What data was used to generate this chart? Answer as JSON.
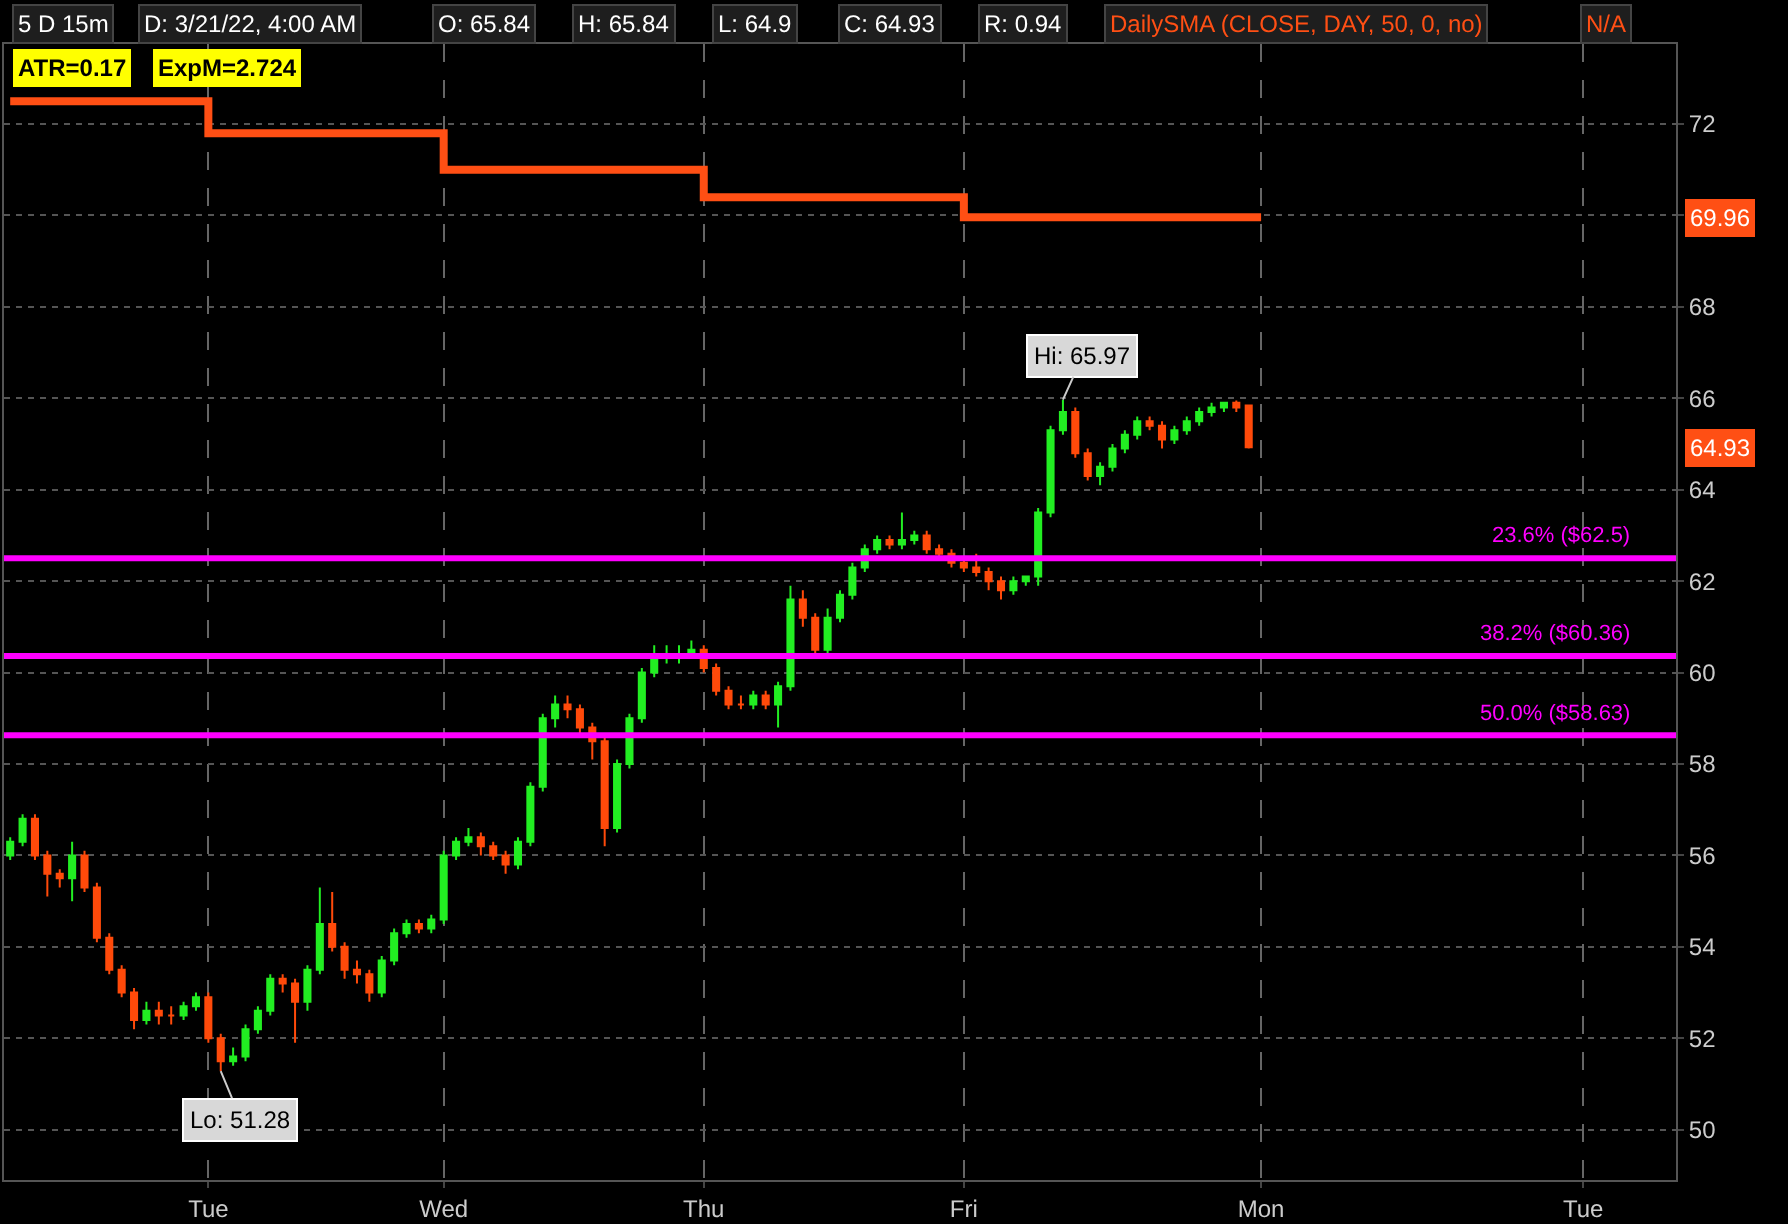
{
  "chart_data": {
    "type": "candlestick",
    "categories": [
      null,
      null,
      null,
      null,
      null,
      null,
      null,
      null,
      null,
      null,
      null,
      null,
      null,
      null,
      null,
      null,
      "Tue",
      null,
      null,
      null,
      null,
      null,
      null,
      null,
      null,
      null,
      null,
      null,
      null,
      null,
      null,
      null,
      null,
      null,
      null,
      "Wed",
      null,
      null,
      null,
      null,
      null,
      null,
      null,
      null,
      null,
      null,
      null,
      null,
      null,
      null,
      null,
      null,
      null,
      null,
      null,
      null,
      "Thu",
      null,
      null,
      null,
      null,
      null,
      null,
      null,
      null,
      null,
      null,
      null,
      null,
      null,
      null,
      null,
      null,
      null,
      null,
      null,
      null,
      "Fri",
      null,
      null,
      null,
      null,
      null,
      null,
      null,
      null,
      null,
      null,
      null,
      null,
      null,
      null,
      null,
      null,
      null,
      null,
      null,
      null,
      null,
      null,
      null,
      "Mon",
      null,
      null,
      null,
      null,
      null,
      null,
      null,
      null,
      null,
      null,
      null,
      null,
      null,
      null,
      null,
      null,
      null,
      null,
      null,
      null,
      null,
      null,
      null,
      null,
      null,
      "Tue",
      null,
      null,
      null,
      null,
      null,
      null,
      null
    ],
    "ohlc": [
      [
        56.0,
        56.4,
        55.9,
        56.3
      ],
      [
        56.3,
        56.9,
        56.2,
        56.8
      ],
      [
        56.8,
        56.9,
        55.9,
        56.0
      ],
      [
        56.0,
        56.1,
        55.1,
        55.6
      ],
      [
        55.6,
        55.7,
        55.3,
        55.5
      ],
      [
        55.5,
        56.3,
        55.0,
        56.0
      ],
      [
        56.0,
        56.1,
        55.2,
        55.3
      ],
      [
        55.3,
        55.4,
        54.1,
        54.2
      ],
      [
        54.2,
        54.3,
        53.4,
        53.5
      ],
      [
        53.5,
        53.6,
        52.9,
        53.0
      ],
      [
        53.0,
        53.1,
        52.2,
        52.4
      ],
      [
        52.4,
        52.8,
        52.3,
        52.6
      ],
      [
        52.6,
        52.8,
        52.3,
        52.5
      ],
      [
        52.5,
        52.7,
        52.3,
        52.5
      ],
      [
        52.5,
        52.8,
        52.4,
        52.7
      ],
      [
        52.7,
        53.0,
        52.6,
        52.9
      ],
      [
        52.9,
        53.0,
        51.9,
        52.0
      ],
      [
        52.0,
        52.1,
        51.28,
        51.5
      ],
      [
        51.5,
        51.8,
        51.4,
        51.6
      ],
      [
        51.6,
        52.3,
        51.5,
        52.2
      ],
      [
        52.2,
        52.7,
        52.1,
        52.6
      ],
      [
        52.6,
        53.4,
        52.5,
        53.3
      ],
      [
        53.3,
        53.4,
        53.0,
        53.2
      ],
      [
        53.2,
        53.3,
        51.9,
        52.8
      ],
      [
        52.8,
        53.6,
        52.6,
        53.5
      ],
      [
        53.5,
        55.3,
        53.4,
        54.5
      ],
      [
        54.5,
        55.2,
        53.9,
        54.0
      ],
      [
        54.0,
        54.1,
        53.3,
        53.5
      ],
      [
        53.5,
        53.7,
        53.2,
        53.4
      ],
      [
        53.4,
        53.5,
        52.8,
        53.0
      ],
      [
        53.0,
        53.8,
        52.9,
        53.7
      ],
      [
        53.7,
        54.4,
        53.6,
        54.3
      ],
      [
        54.3,
        54.6,
        54.2,
        54.5
      ],
      [
        54.5,
        54.6,
        54.3,
        54.4
      ],
      [
        54.4,
        54.7,
        54.3,
        54.6
      ],
      [
        54.6,
        56.1,
        54.5,
        56.0
      ],
      [
        56.0,
        56.4,
        55.9,
        56.3
      ],
      [
        56.3,
        56.6,
        56.2,
        56.4
      ],
      [
        56.4,
        56.5,
        56.0,
        56.2
      ],
      [
        56.2,
        56.3,
        55.9,
        56.0
      ],
      [
        56.0,
        56.1,
        55.6,
        55.8
      ],
      [
        55.8,
        56.4,
        55.7,
        56.3
      ],
      [
        56.3,
        57.6,
        56.2,
        57.5
      ],
      [
        57.5,
        59.1,
        57.4,
        59.0
      ],
      [
        59.0,
        59.5,
        58.8,
        59.3
      ],
      [
        59.3,
        59.5,
        59.0,
        59.2
      ],
      [
        59.2,
        59.3,
        58.6,
        58.8
      ],
      [
        58.8,
        58.9,
        58.1,
        58.5
      ],
      [
        58.5,
        58.6,
        56.2,
        56.6
      ],
      [
        56.6,
        58.1,
        56.5,
        58.0
      ],
      [
        58.0,
        59.1,
        57.9,
        59.0
      ],
      [
        59.0,
        60.1,
        58.9,
        60.0
      ],
      [
        60.0,
        60.6,
        59.9,
        60.4
      ],
      [
        60.4,
        60.6,
        60.2,
        60.4
      ],
      [
        60.4,
        60.6,
        60.2,
        60.4
      ],
      [
        60.4,
        60.7,
        60.3,
        60.5
      ],
      [
        60.5,
        60.6,
        60.0,
        60.1
      ],
      [
        60.1,
        60.2,
        59.5,
        59.6
      ],
      [
        59.6,
        59.7,
        59.2,
        59.3
      ],
      [
        59.3,
        59.5,
        59.2,
        59.3
      ],
      [
        59.3,
        59.6,
        59.2,
        59.5
      ],
      [
        59.5,
        59.6,
        59.2,
        59.3
      ],
      [
        59.3,
        59.8,
        58.8,
        59.7
      ],
      [
        59.7,
        61.9,
        59.6,
        61.6
      ],
      [
        61.6,
        61.8,
        61.0,
        61.2
      ],
      [
        61.2,
        61.3,
        60.4,
        60.5
      ],
      [
        60.5,
        61.4,
        60.4,
        61.2
      ],
      [
        61.2,
        61.8,
        61.1,
        61.7
      ],
      [
        61.7,
        62.4,
        61.6,
        62.3
      ],
      [
        62.3,
        62.8,
        62.2,
        62.7
      ],
      [
        62.7,
        63.0,
        62.6,
        62.9
      ],
      [
        62.9,
        63.0,
        62.7,
        62.8
      ],
      [
        62.8,
        63.5,
        62.7,
        62.9
      ],
      [
        62.9,
        63.1,
        62.8,
        63.0
      ],
      [
        63.0,
        63.1,
        62.6,
        62.7
      ],
      [
        62.7,
        62.8,
        62.5,
        62.6
      ],
      [
        62.6,
        62.7,
        62.3,
        62.4
      ],
      [
        62.4,
        62.5,
        62.2,
        62.3
      ],
      [
        62.3,
        62.6,
        62.1,
        62.2
      ],
      [
        62.2,
        62.3,
        61.8,
        62.0
      ],
      [
        62.0,
        62.1,
        61.6,
        61.8
      ],
      [
        61.8,
        62.1,
        61.7,
        62.0
      ],
      [
        62.0,
        62.1,
        61.9,
        62.1
      ],
      [
        62.1,
        63.6,
        61.9,
        63.5
      ],
      [
        63.5,
        65.4,
        63.4,
        65.3
      ],
      [
        65.3,
        65.97,
        65.2,
        65.7
      ],
      [
        65.7,
        65.8,
        64.7,
        64.8
      ],
      [
        64.8,
        64.9,
        64.2,
        64.3
      ],
      [
        64.3,
        64.6,
        64.1,
        64.5
      ],
      [
        64.5,
        65.0,
        64.4,
        64.9
      ],
      [
        64.9,
        65.3,
        64.8,
        65.2
      ],
      [
        65.2,
        65.6,
        65.1,
        65.5
      ],
      [
        65.5,
        65.6,
        65.3,
        65.4
      ],
      [
        65.4,
        65.5,
        64.9,
        65.1
      ],
      [
        65.1,
        65.4,
        65.0,
        65.3
      ],
      [
        65.3,
        65.6,
        65.2,
        65.5
      ],
      [
        65.5,
        65.8,
        65.4,
        65.7
      ],
      [
        65.7,
        65.9,
        65.6,
        65.8
      ],
      [
        65.8,
        65.9,
        65.7,
        65.9
      ],
      [
        65.9,
        65.95,
        65.7,
        65.8
      ],
      [
        65.84,
        65.84,
        64.9,
        64.93
      ],
      null,
      null,
      null,
      null,
      null,
      null,
      null,
      null,
      null,
      null,
      null,
      null,
      null,
      null,
      null,
      null,
      null,
      null,
      null,
      null,
      null,
      null,
      null,
      null,
      null,
      null,
      null,
      null,
      null,
      null,
      null,
      null,
      null,
      null
    ],
    "series": [
      {
        "type": "step",
        "color": "#ff4f14",
        "values": [
          72.5,
          72.5,
          72.5,
          72.5,
          72.5,
          72.5,
          72.5,
          72.5,
          72.5,
          72.5,
          72.5,
          72.5,
          72.5,
          72.5,
          72.5,
          72.5,
          71.8,
          71.8,
          71.8,
          71.8,
          71.8,
          71.8,
          71.8,
          71.8,
          71.8,
          71.8,
          71.8,
          71.8,
          71.8,
          71.8,
          71.8,
          71.8,
          71.8,
          71.8,
          71.8,
          71.0,
          71.0,
          71.0,
          71.0,
          71.0,
          71.0,
          71.0,
          71.0,
          71.0,
          71.0,
          71.0,
          71.0,
          71.0,
          71.0,
          71.0,
          71.0,
          71.0,
          71.0,
          71.0,
          71.0,
          71.0,
          70.4,
          70.4,
          70.4,
          70.4,
          70.4,
          70.4,
          70.4,
          70.4,
          70.4,
          70.4,
          70.4,
          70.4,
          70.4,
          70.4,
          70.4,
          70.4,
          70.4,
          70.4,
          70.4,
          70.4,
          70.4,
          69.96,
          69.96,
          69.96,
          69.96,
          69.96,
          69.96,
          69.96,
          69.96,
          69.96,
          69.96,
          69.96,
          69.96,
          69.96,
          69.96,
          69.96,
          69.96,
          69.96,
          69.96,
          69.96,
          69.96,
          69.96,
          69.96,
          69.96,
          69.96,
          69.96,
          null,
          null,
          null,
          null,
          null,
          null,
          null,
          null,
          null,
          null,
          null,
          null,
          null,
          null,
          null,
          null,
          null,
          null,
          null,
          null,
          null,
          null,
          null,
          null,
          null,
          null,
          null,
          null,
          null,
          null,
          null,
          null,
          null
        ]
      }
    ],
    "ylim": [
      48.9,
      73.75
    ],
    "yticks": [
      50,
      52,
      54,
      56,
      58,
      60,
      62,
      64,
      66,
      68,
      {
        "value": 70,
        "label": null
      },
      72
    ],
    "grid": true,
    "ref_lines": [
      {
        "axis": "y",
        "value": 62.5,
        "label": "23.6% ($62.5)",
        "color": "#ff00ff"
      },
      {
        "axis": "y",
        "value": 60.36,
        "label": "38.2% ($60.36)",
        "color": "#ff00ff"
      },
      {
        "axis": "y",
        "value": 58.63,
        "label": "50.0% ($58.63)",
        "color": "#ff00ff"
      }
    ],
    "annotations": [
      "5 D 15m",
      "D: 3/21/22, 4:00 AM",
      "O: 65.84",
      "H: 65.84",
      "L: 64.9",
      "C: 64.93",
      "R: 0.94",
      "DailySMA (CLOSE, DAY, 50, 0, no)",
      "N/A",
      "ATR=0.17",
      "ExpM=2.724",
      "69.96",
      "64.93",
      "Hi: 65.97",
      "Lo: 51.28"
    ]
  }
}
